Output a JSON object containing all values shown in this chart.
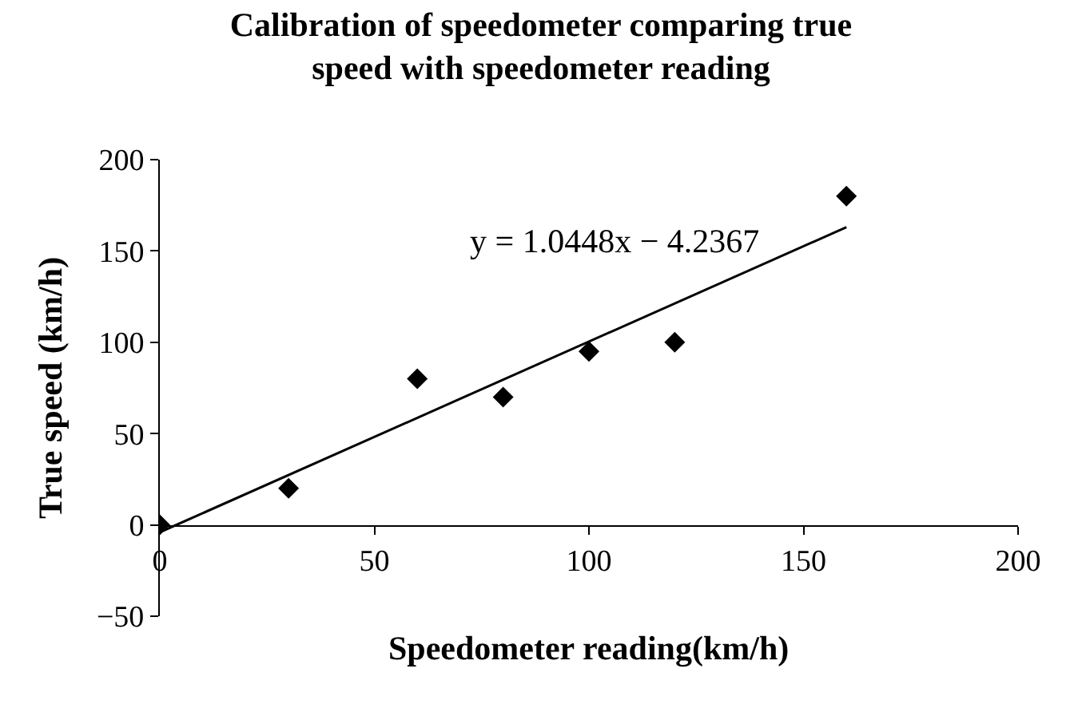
{
  "chart_data": {
    "type": "scatter",
    "title": "Calibration of speedometer comparing true speed with speedometer reading",
    "xlabel": "Speedometer reading(km/h)",
    "ylabel": "True speed (km/h)",
    "series": [
      {
        "color": "#000000",
        "x": [
          0,
          30,
          60,
          80,
          100,
          120,
          160
        ],
        "values": [
          0,
          20,
          80,
          70,
          95,
          100,
          180
        ],
        "marker": "diamond"
      },
      {
        "type": "line",
        "color": "#000000",
        "x": [
          0,
          160
        ],
        "values": [
          -4,
          163
        ],
        "line_style": "solid"
      }
    ],
    "annotations": [
      "y = 1.0448x − 4.2367"
    ],
    "xlim": [
      0,
      200
    ],
    "xticks": [
      0,
      50,
      100,
      150,
      200
    ],
    "ylim": [
      -50,
      200
    ],
    "yticks": [
      -50,
      0,
      50,
      100,
      150,
      200
    ]
  }
}
